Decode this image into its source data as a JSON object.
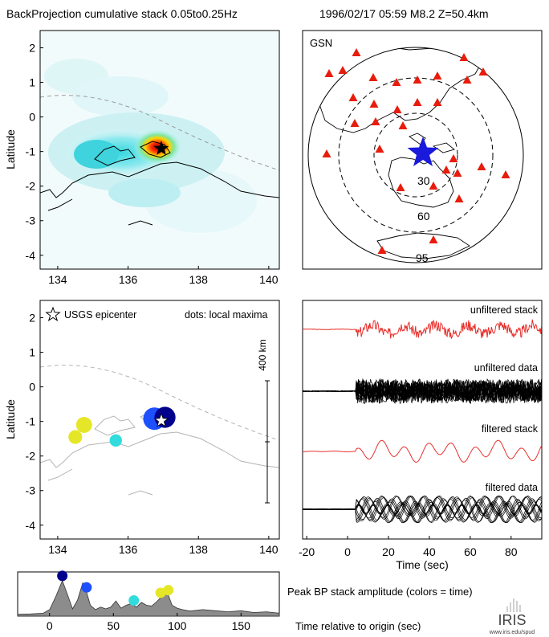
{
  "header": {
    "title": "BackProjection cumulative stack 0.05to0.25Hz",
    "event": "1996/02/17 05:59   M8.2  Z=50.4km"
  },
  "colors": {
    "stack": "#e8302c",
    "data": "#000000",
    "coast": "#000000",
    "coast_light": "#b4b4b4",
    "station": "#e81c0c",
    "epicenter_star": "#1a1adc",
    "envelope": "#8c8c8c",
    "plate": "#9a9a9a",
    "time_colormap": [
      "#00008c",
      "#1e50ff",
      "#32dcdc",
      "#e6e628"
    ]
  },
  "chart_data": [
    {
      "id": "bp-heatmap",
      "type": "heatmap",
      "title": "",
      "xlabel": "",
      "ylabel": "Latitude",
      "xlim": [
        133.5,
        140.3
      ],
      "ylim": [
        -4.4,
        2.5
      ],
      "xticks": [
        134,
        136,
        138,
        140
      ],
      "yticks": [
        2,
        1,
        0,
        -1,
        -2,
        -3,
        -4
      ],
      "peak": {
        "lon": 136.8,
        "lat": -0.9
      },
      "epicenter": {
        "lon": 136.98,
        "lat": -0.89
      }
    },
    {
      "id": "gsn-map",
      "type": "scatter",
      "label": "GSN",
      "distance_rings": [
        "30",
        "60",
        "95"
      ],
      "station_count": 30
    },
    {
      "id": "local-maxima",
      "type": "scatter",
      "legend": "USGS epicenter",
      "note": "dots: local maxima",
      "ylabel": "Latitude",
      "scale_label": "400 km",
      "xlim": [
        133.5,
        140.3
      ],
      "ylim": [
        -4.4,
        2.5
      ],
      "xticks": [
        134,
        136,
        138,
        140
      ],
      "yticks": [
        2,
        1,
        0,
        -1,
        -2,
        -3,
        -4
      ],
      "points": [
        {
          "lon": 136.75,
          "lat": -0.92,
          "time": 23,
          "size": 1.0
        },
        {
          "lon": 137.05,
          "lat": -0.88,
          "time": 10,
          "size": 0.9
        },
        {
          "lon": 134.75,
          "lat": -1.1,
          "time": 90,
          "size": 0.55
        },
        {
          "lon": 134.5,
          "lat": -1.45,
          "time": 82,
          "size": 0.4
        },
        {
          "lon": 135.65,
          "lat": -1.55,
          "time": 65,
          "size": 0.3
        }
      ]
    },
    {
      "id": "seismograms",
      "type": "line",
      "xlabel": "Time (sec)",
      "xlim": [
        -22,
        95
      ],
      "xticks": [
        -20,
        0,
        20,
        40,
        60,
        80
      ],
      "labels": [
        "unfiltered stack",
        "unfiltered data",
        "filtered stack",
        "filtered data"
      ]
    },
    {
      "id": "peak-amplitude",
      "type": "area",
      "title": "Peak BP stack amplitude (colors = time)",
      "xlabel": "Time relative to origin (sec)",
      "xlim": [
        -25,
        180
      ],
      "xticks": [
        0,
        50,
        100,
        150
      ],
      "times": [
        -25,
        -15,
        -5,
        0,
        5,
        10,
        14,
        18,
        22,
        26,
        28,
        32,
        36,
        40,
        44,
        48,
        52,
        56,
        60,
        64,
        68,
        72,
        76,
        80,
        84,
        88,
        92,
        96,
        100,
        104,
        110,
        120,
        130,
        140,
        150,
        160,
        170,
        180
      ],
      "values": [
        0.05,
        0.06,
        0.08,
        0.18,
        0.55,
        0.98,
        0.6,
        0.2,
        0.45,
        0.92,
        0.78,
        0.3,
        0.18,
        0.25,
        0.2,
        0.25,
        0.42,
        0.22,
        0.3,
        0.35,
        0.25,
        0.38,
        0.3,
        0.28,
        0.4,
        0.55,
        0.68,
        0.3,
        0.22,
        0.18,
        0.14,
        0.18,
        0.15,
        0.12,
        0.15,
        0.1,
        0.12,
        0.08
      ],
      "peaks": [
        {
          "time": 10,
          "color_index": 0
        },
        {
          "time": 29,
          "color_index": 1
        },
        {
          "time": 66,
          "color_index": 2
        },
        {
          "time": 87,
          "color_index": 3
        },
        {
          "time": 93,
          "color_index": 3
        }
      ]
    }
  ],
  "logo": {
    "text": "IRIS",
    "url": "www.iris.edu/spud"
  }
}
